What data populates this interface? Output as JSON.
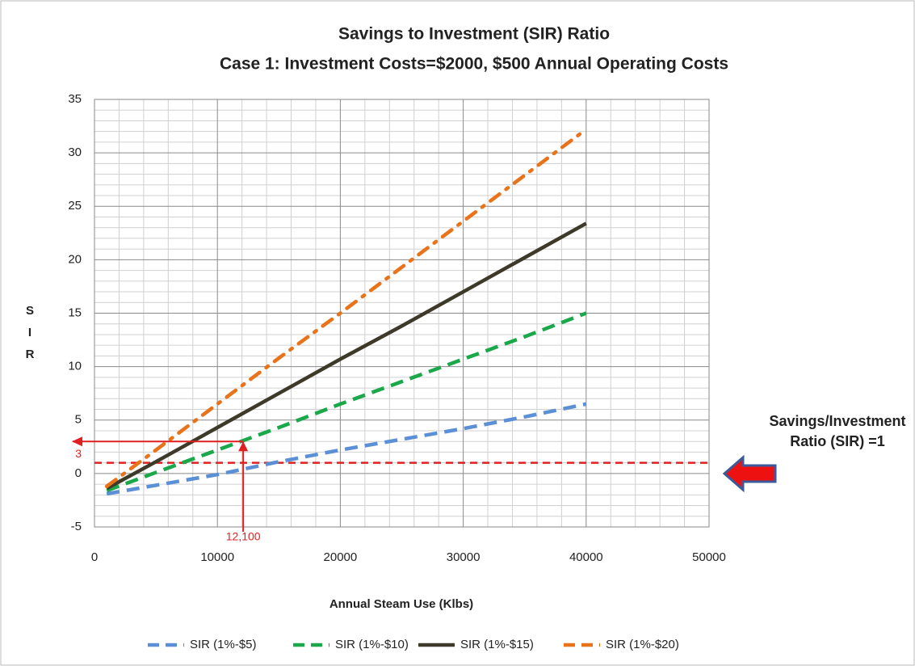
{
  "chart_data": {
    "type": "line",
    "title": [
      "Savings to Investment (SIR) Ratio",
      "Case 1: Investment Costs=$2000, $500 Annual Operating Costs"
    ],
    "xlabel": "Annual Steam Use (Klbs)",
    "ylabel": "SIR",
    "x": [
      1000,
      5000,
      10000,
      15000,
      20000,
      25000,
      30000,
      35000,
      40000
    ],
    "series": [
      {
        "name": "SIR (1%-$5)",
        "color": "#5b8fd6",
        "dash": "dash",
        "values": [
          -1.9,
          -1.1,
          -0.1,
          1.1,
          2.2,
          3.2,
          4.2,
          5.3,
          6.5
        ]
      },
      {
        "name": "SIR (1%-$10)",
        "color": "#1aa84a",
        "dash": "dash",
        "values": [
          -1.6,
          0.1,
          2.2,
          4.3,
          6.5,
          8.6,
          10.7,
          12.8,
          15
        ]
      },
      {
        "name": "SIR (1%-$15)",
        "color": "#3d3a2a",
        "dash": "solid",
        "values": [
          -1.4,
          1.1,
          4.3,
          7.5,
          10.7,
          13.8,
          17.0,
          20.2,
          23.4
        ]
      },
      {
        "name": "SIR (1%-$20)",
        "color": "#e8731a",
        "dash": "dashdot",
        "values": [
          -1.2,
          2.2,
          6.5,
          10.8,
          15.0,
          19.3,
          23.6,
          27.9,
          32.2
        ]
      }
    ],
    "xlim": [
      0,
      50000
    ],
    "xticks": [
      0,
      10000,
      20000,
      30000,
      40000,
      50000
    ],
    "ylim": [
      -5,
      35
    ],
    "yticks": [
      -5,
      0,
      5,
      10,
      15,
      20,
      25,
      30,
      35
    ],
    "grid": true,
    "legend": "bottom",
    "reference_line": {
      "value": 1,
      "color": "#e02020",
      "label": [
        "Savings/Investment",
        "Ratio (SIR) =1"
      ]
    },
    "annotations": [
      {
        "x": 12100,
        "label": "12,100",
        "color": "#e02020"
      },
      {
        "y": 3,
        "label": "3",
        "color": "#e02020"
      }
    ]
  }
}
